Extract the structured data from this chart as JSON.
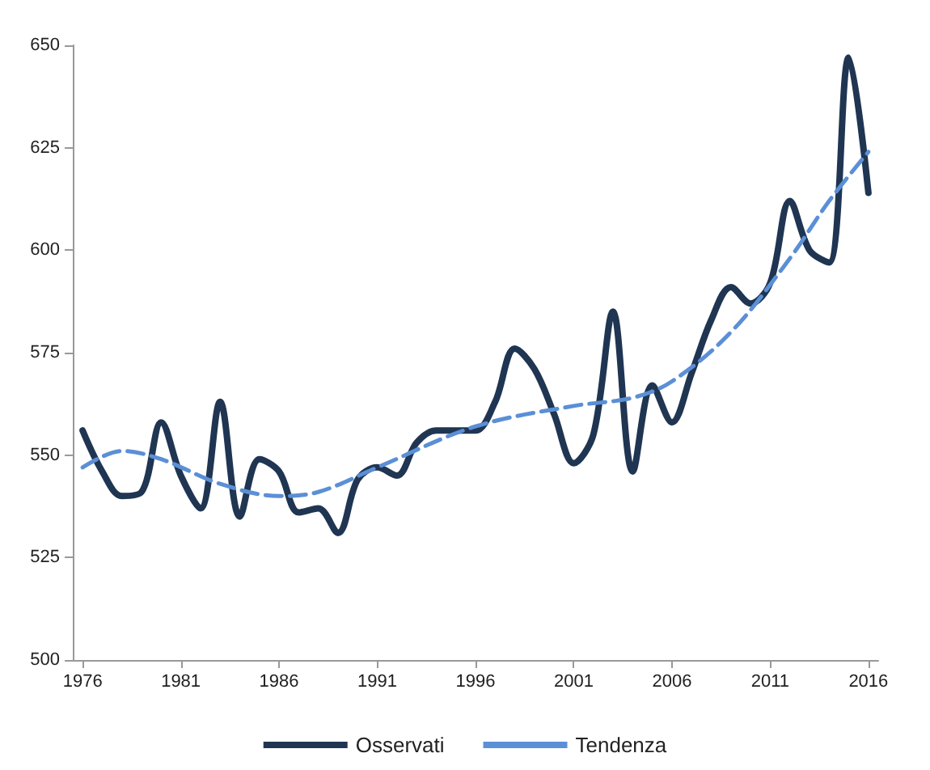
{
  "chart_data": {
    "type": "line",
    "x": [
      1976,
      1977,
      1978,
      1979,
      1980,
      1981,
      1982,
      1983,
      1984,
      1985,
      1986,
      1987,
      1988,
      1989,
      1990,
      1991,
      1992,
      1993,
      1994,
      1995,
      1996,
      1997,
      1998,
      1999,
      2000,
      2001,
      2002,
      2003,
      2004,
      2005,
      2006,
      2007,
      2008,
      2009,
      2010,
      2011,
      2012,
      2013,
      2014,
      2015,
      2016
    ],
    "series": [
      {
        "name": "Osservati",
        "color": "#1f3552",
        "line_style": "solid",
        "values": [
          556,
          546,
          540,
          541,
          558,
          545,
          537,
          563,
          535,
          549,
          546,
          536,
          537,
          531,
          544,
          547,
          545,
          553,
          556,
          556,
          556,
          563,
          576,
          571,
          560,
          548,
          555,
          585,
          546,
          567,
          558,
          570,
          583,
          591,
          587,
          592,
          612,
          600,
          597,
          647,
          614
        ]
      },
      {
        "name": "Tendenza",
        "color": "#5b8fd6",
        "line_style": "dashed",
        "x": [
          1976,
          1978,
          1980,
          1983,
          1986,
          1988,
          1991,
          1996,
          2001,
          2004,
          2006,
          2009,
          2012,
          2014,
          2016
        ],
        "values": [
          547,
          551,
          549,
          543,
          540,
          541,
          547,
          557,
          562,
          564,
          568,
          580,
          598,
          612,
          624
        ]
      }
    ],
    "xlim": [
      1975.5,
      2016.5
    ],
    "xticks": [
      1976,
      1981,
      1986,
      1991,
      1996,
      2001,
      2006,
      2011,
      2016
    ],
    "ylim": [
      500,
      650
    ],
    "yticks": [
      500,
      525,
      550,
      575,
      600,
      625,
      650
    ],
    "grid": false,
    "legend": "bottom",
    "marker": "none"
  }
}
